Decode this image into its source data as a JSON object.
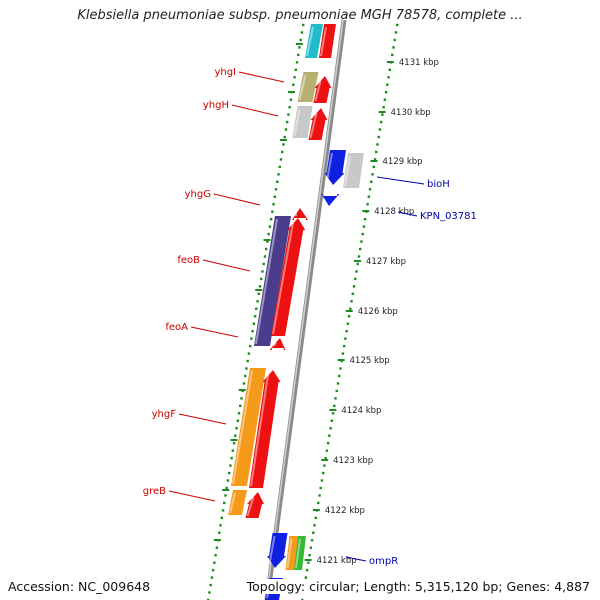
{
  "title": "Klebsiella pneumoniae subsp. pneumoniae MGH 78578, complete ...",
  "footer": {
    "accession": "Accession: NC_009648",
    "topology": "Topology: circular; Length: 5,315,120 bp; Genes: 4,887"
  },
  "colors": {
    "left_label": "#cc0000",
    "right_label": "#0000aa",
    "dots": "#1f8a1f",
    "backbone": "#999999",
    "red": "#ee1111",
    "blue": "#1020e0",
    "grey": "#c8c8c8",
    "olive": "#b8b070",
    "indigo": "#4a3d8c",
    "orange": "#f59a1a",
    "green": "#33bb33",
    "cyan": "#22bbcc"
  },
  "left_labels": [
    "yhgI",
    "yhgH",
    "yhgG",
    "feoB",
    "feoA",
    "yhgF",
    "greB"
  ],
  "right_labels": [
    "bioH",
    "KPN_03781",
    "ompR"
  ],
  "scale_ticks": [
    "4131 kbp",
    "4130 kbp",
    "4129 kbp",
    "4128 kbp",
    "4127 kbp",
    "4126 kbp",
    "4125 kbp",
    "4124 kbp",
    "4123 kbp",
    "4122 kbp",
    "4121 kbp"
  ]
}
